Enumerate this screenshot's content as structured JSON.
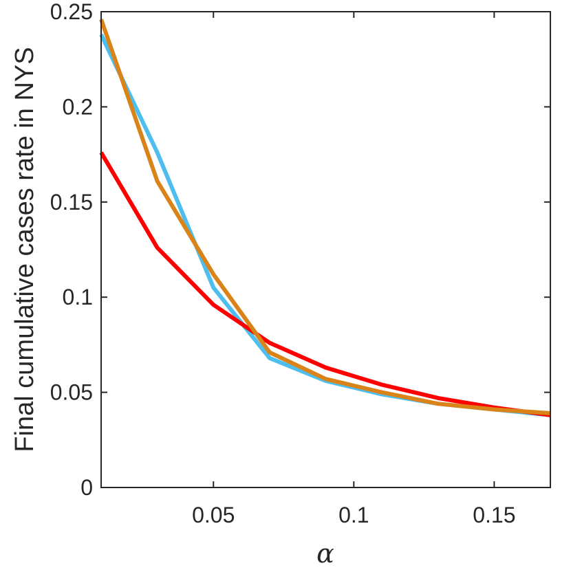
{
  "chart_data": {
    "type": "line",
    "title": "",
    "xlabel": "α",
    "ylabel": "Final cumulative cases rate in NYS",
    "xlim": [
      0.01,
      0.17
    ],
    "ylim": [
      0,
      0.25
    ],
    "grid": false,
    "x": [
      0.01,
      0.03,
      0.05,
      0.07,
      0.09,
      0.11,
      0.13,
      0.15,
      0.17
    ],
    "x_ticks": [
      0.05,
      0.1,
      0.15
    ],
    "x_tick_labels": [
      "0.05",
      "0.1",
      "0.15"
    ],
    "y_ticks": [
      0,
      0.05,
      0.1,
      0.15,
      0.2,
      0.25
    ],
    "y_tick_labels": [
      "0",
      "0.05",
      "0.1",
      "0.15",
      "0.2",
      "0.25"
    ],
    "series": [
      {
        "color": "#4DBEEE",
        "values": [
          0.238,
          0.176,
          0.105,
          0.068,
          0.056,
          0.049,
          0.044,
          0.041,
          0.038
        ]
      },
      {
        "color": "#FF0000",
        "values": [
          0.176,
          0.126,
          0.096,
          0.076,
          0.063,
          0.054,
          0.047,
          0.042,
          0.038
        ]
      },
      {
        "color": "#D98319",
        "values": [
          0.246,
          0.161,
          0.112,
          0.071,
          0.057,
          0.05,
          0.044,
          0.041,
          0.039
        ]
      }
    ]
  }
}
